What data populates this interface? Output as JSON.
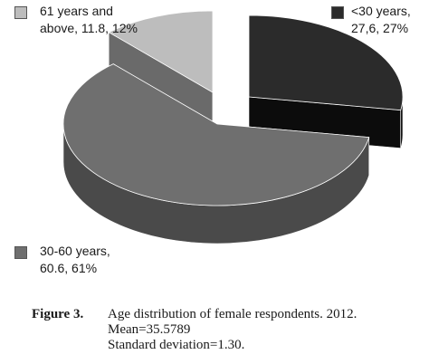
{
  "chart_data": {
    "type": "pie",
    "title": "",
    "slices": [
      {
        "label_line1": "<30 years,",
        "label_line2": "27,6, 27%",
        "value": 27.6,
        "percent": 27,
        "color": "#2b2b2b",
        "side_color": "#0c0c0c"
      },
      {
        "label_line1": "30-60 years,",
        "label_line2": "60.6, 61%",
        "value": 60.6,
        "percent": 61,
        "color": "#6f6f6f",
        "side_color": "#4a4a4a"
      },
      {
        "label_line1": "61 years and",
        "label_line2": "above, 11.8, 12%",
        "value": 11.8,
        "percent": 12,
        "color": "#bdbdbd",
        "side_color": "#6a6a6a"
      }
    ],
    "legend": "around"
  },
  "caption": {
    "figure_label": "Figure 3.",
    "line1": "Age distribution of female respondents. 2012.",
    "line2": "Mean=35.5789",
    "line3": "Standard deviation=1.30."
  }
}
